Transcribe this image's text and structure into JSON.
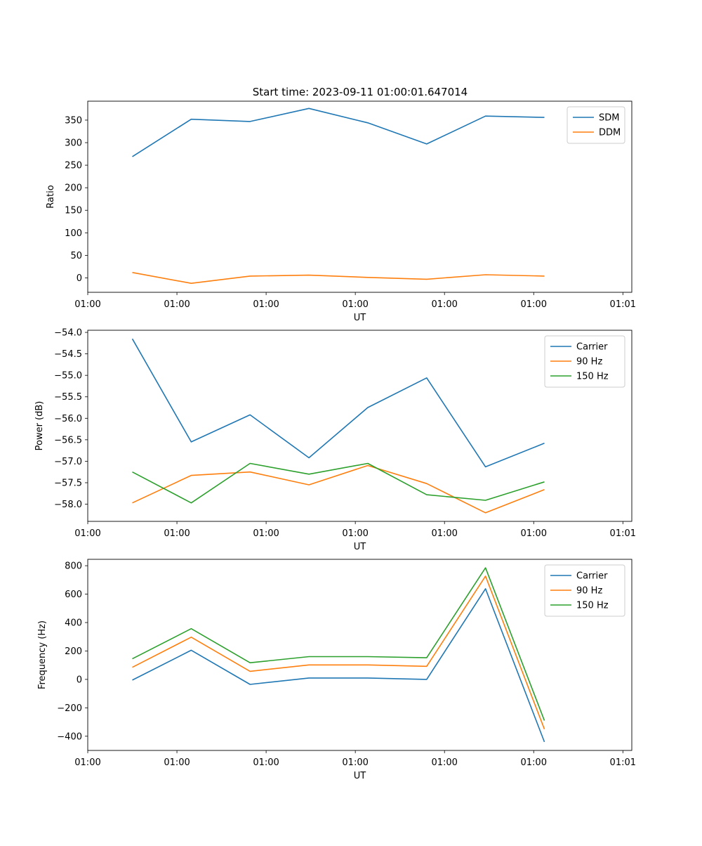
{
  "figure_title": "Start time: 2023-09-11 01:00:01.647014",
  "colors": {
    "blue": "#1f77b4",
    "orange": "#ff7f0e",
    "green": "#2ca02c"
  },
  "chart_data": [
    {
      "type": "line",
      "title": "Start time: 2023-09-11 01:00:01.647014",
      "xlabel": "UT",
      "ylabel": "Ratio",
      "x": [
        0.5,
        1.16,
        1.82,
        2.48,
        3.14,
        3.8,
        4.46,
        5.12
      ],
      "xlim": [
        0,
        6.1
      ],
      "xticks": [
        0.0,
        1.0,
        2.0,
        3.0,
        4.0,
        5.0,
        6.0
      ],
      "xtick_labels": [
        "01:00",
        "01:00",
        "01:00",
        "01:00",
        "01:00",
        "01:00",
        "01:01"
      ],
      "ylim": [
        -32,
        392
      ],
      "yticks": [
        0,
        50,
        100,
        150,
        200,
        250,
        300,
        350
      ],
      "ytick_labels": [
        "0",
        "50",
        "100",
        "150",
        "200",
        "250",
        "300",
        "350"
      ],
      "legend_position": "top-right",
      "series": [
        {
          "name": "SDM",
          "color": "#1f77b4",
          "values": [
            269,
            352,
            347,
            376,
            344,
            297,
            359,
            356
          ]
        },
        {
          "name": "DDM",
          "color": "#ff7f0e",
          "values": [
            12,
            -12,
            4,
            6,
            1,
            -3,
            7,
            4
          ]
        }
      ]
    },
    {
      "type": "line",
      "title": "",
      "xlabel": "UT",
      "ylabel": "Power (dB)",
      "x": [
        0.5,
        1.16,
        1.82,
        2.48,
        3.14,
        3.8,
        4.46,
        5.12
      ],
      "xlim": [
        0,
        6.1
      ],
      "xticks": [
        0.0,
        1.0,
        2.0,
        3.0,
        4.0,
        5.0,
        6.0
      ],
      "xtick_labels": [
        "01:00",
        "01:00",
        "01:00",
        "01:00",
        "01:00",
        "01:00",
        "01:01"
      ],
      "ylim": [
        -58.4,
        -53.95
      ],
      "yticks": [
        -58.0,
        -57.5,
        -57.0,
        -56.5,
        -56.0,
        -55.5,
        -55.0,
        -54.5,
        -54.0
      ],
      "ytick_labels": [
        "−58.0",
        "−57.5",
        "−57.0",
        "−56.5",
        "−56.0",
        "−55.5",
        "−55.0",
        "−54.5",
        "−54.0"
      ],
      "legend_position": "top-right",
      "series": [
        {
          "name": "Carrier",
          "color": "#1f77b4",
          "values": [
            -54.15,
            -56.55,
            -55.92,
            -56.92,
            -55.75,
            -55.06,
            -57.13,
            -56.58
          ]
        },
        {
          "name": "90 Hz",
          "color": "#ff7f0e",
          "values": [
            -57.97,
            -57.33,
            -57.25,
            -57.55,
            -57.1,
            -57.52,
            -58.2,
            -57.66
          ]
        },
        {
          "name": "150 Hz",
          "color": "#2ca02c",
          "values": [
            -57.25,
            -57.97,
            -57.05,
            -57.3,
            -57.05,
            -57.78,
            -57.91,
            -57.48
          ]
        }
      ]
    },
    {
      "type": "line",
      "title": "",
      "xlabel": "UT",
      "ylabel": "Frequency (Hz)",
      "x": [
        0.5,
        1.16,
        1.82,
        2.48,
        3.14,
        3.8,
        4.46,
        5.12
      ],
      "xlim": [
        0,
        6.1
      ],
      "xticks": [
        0.0,
        1.0,
        2.0,
        3.0,
        4.0,
        5.0,
        6.0
      ],
      "xtick_labels": [
        "01:00",
        "01:00",
        "01:00",
        "01:00",
        "01:00",
        "01:00",
        "01:01"
      ],
      "ylim": [
        -500,
        845
      ],
      "yticks": [
        -400,
        -200,
        0,
        200,
        400,
        600,
        800
      ],
      "ytick_labels": [
        "−400",
        "−200",
        "0",
        "200",
        "400",
        "600",
        "800"
      ],
      "legend_position": "top-right",
      "series": [
        {
          "name": "Carrier",
          "color": "#1f77b4",
          "values": [
            -5,
            205,
            -35,
            10,
            10,
            0,
            638,
            -440
          ]
        },
        {
          "name": "90 Hz",
          "color": "#ff7f0e",
          "values": [
            85,
            297,
            57,
            102,
            102,
            92,
            727,
            -350
          ]
        },
        {
          "name": "150 Hz",
          "color": "#2ca02c",
          "values": [
            145,
            357,
            117,
            160,
            160,
            152,
            785,
            -290
          ]
        }
      ]
    }
  ]
}
